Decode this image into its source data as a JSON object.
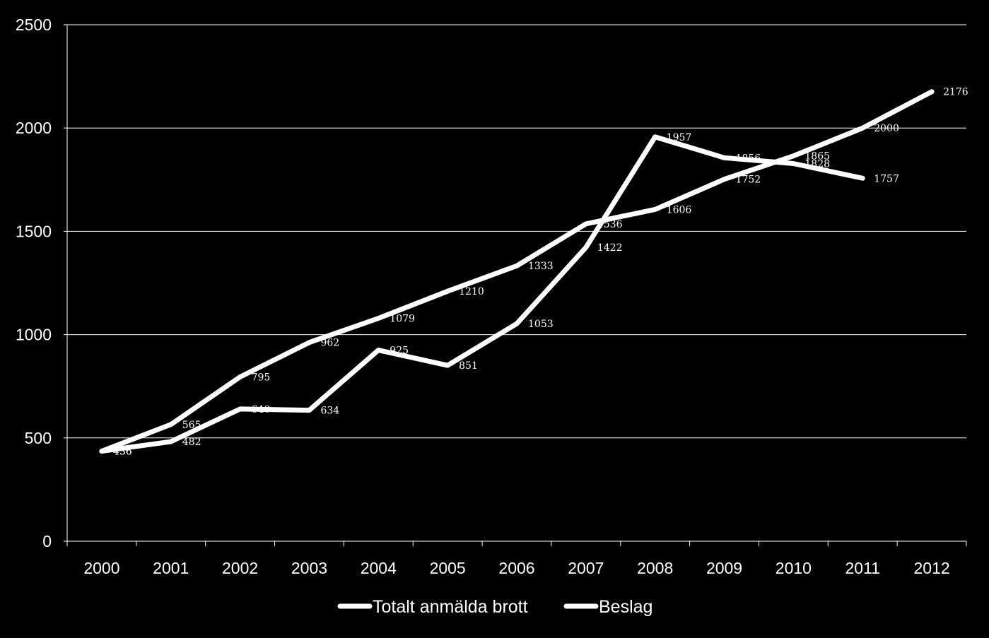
{
  "chart_data": {
    "type": "line",
    "title": "",
    "xlabel": "",
    "ylabel": "",
    "categories": [
      "2000",
      "2001",
      "2002",
      "2003",
      "2004",
      "2005",
      "2006",
      "2007",
      "2008",
      "2009",
      "2010",
      "2011",
      "2012"
    ],
    "ylim": [
      0,
      2500
    ],
    "yticks": [
      "0",
      "500",
      "1000",
      "1500",
      "2000",
      "2500"
    ],
    "grid": true,
    "legend_position": "bottom",
    "series": [
      {
        "name": "Totalt anmälda brott",
        "values": [
          436,
          565,
          795,
          962,
          1079,
          1210,
          1333,
          1536,
          1606,
          1752,
          1865,
          2000,
          2176
        ],
        "labels": [
          "436",
          "565",
          "795",
          "962",
          "1079",
          "1210",
          "1333",
          "1536",
          "1606",
          "1752",
          "1865",
          "2000",
          "2176"
        ],
        "color": "#ffffff"
      },
      {
        "name": "Beslag",
        "values": [
          436,
          482,
          640,
          634,
          925,
          851,
          1053,
          1422,
          1957,
          1856,
          1828,
          1757,
          null
        ],
        "labels": [
          "436",
          "482",
          "640",
          "634",
          "925",
          "851",
          "1053",
          "1422",
          "1957",
          "1856",
          "1828",
          "1757",
          ""
        ],
        "color": "#ffffff"
      }
    ],
    "background": "#000000",
    "gridline_color": "#ffffff"
  }
}
